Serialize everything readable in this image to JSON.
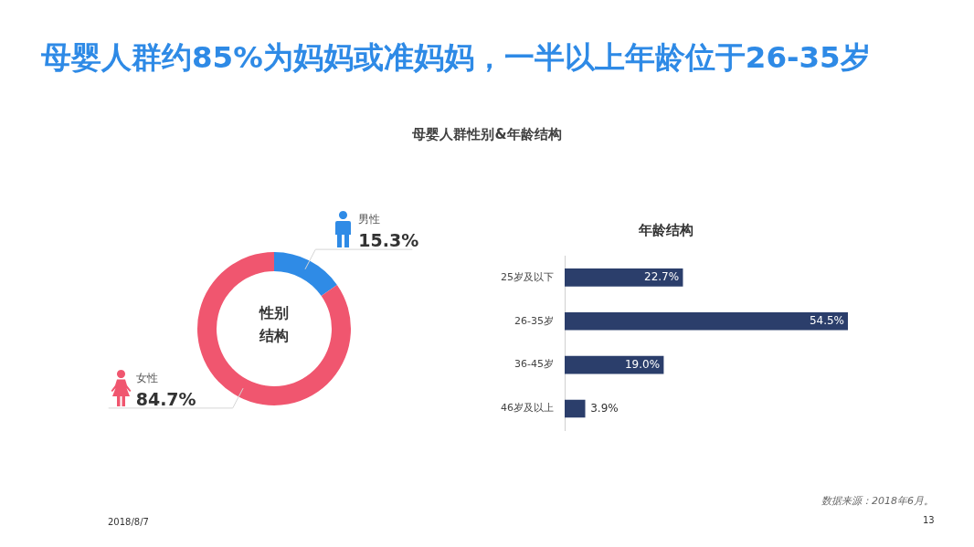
{
  "chart_data": [
    {
      "type": "donut",
      "title": "母婴人群约85%为妈妈或准妈妈，一半以上年龄位于26-35岁",
      "subtitle": "母婴人群性别&年龄结构",
      "categories": [
        "男性",
        "女性"
      ],
      "values": [
        15.3,
        84.7
      ],
      "colors": [
        "#2f8be6",
        "#f0566f"
      ],
      "value_labels": [
        "15.3%",
        "84.7%"
      ],
      "annotations": [
        "性别结构"
      ]
    },
    {
      "type": "bar",
      "orientation": "horizontal",
      "title": "年龄结构",
      "categories": [
        "25岁及以下",
        "26-35岁",
        "36-45岁",
        "46岁及以上"
      ],
      "values": [
        22.7,
        54.5,
        19.0,
        3.9
      ],
      "color": "#2b3e6b",
      "value_labels": [
        "22.7%",
        "54.5%",
        "19.0%",
        "3.9%"
      ],
      "annotations": [
        "数据来源：2018年6月。",
        "2018/8/7",
        "13"
      ]
    }
  ]
}
